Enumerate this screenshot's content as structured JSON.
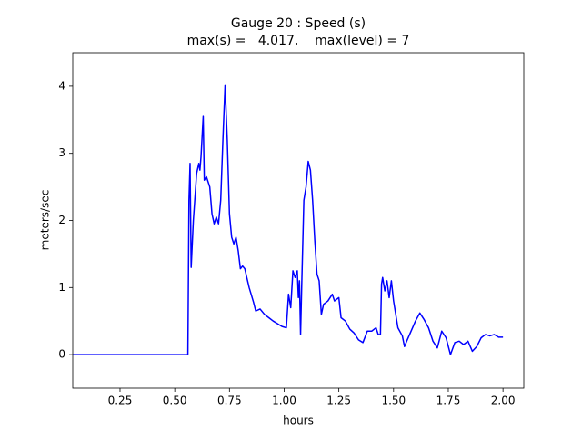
{
  "chart_data": {
    "type": "line",
    "title": "Gauge 20 : Speed (s)",
    "subtitle": "max(s) =   4.017,    max(level) = 7",
    "x_label": "hours",
    "y_label": "meters/sec",
    "x": [
      0.034,
      0.56,
      0.565,
      0.57,
      0.575,
      0.585,
      0.6,
      0.61,
      0.615,
      0.62,
      0.63,
      0.635,
      0.645,
      0.66,
      0.67,
      0.68,
      0.69,
      0.7,
      0.71,
      0.72,
      0.73,
      0.74,
      0.75,
      0.76,
      0.77,
      0.78,
      0.79,
      0.8,
      0.81,
      0.82,
      0.84,
      0.86,
      0.87,
      0.89,
      0.91,
      0.93,
      0.95,
      0.97,
      0.99,
      1.01,
      1.02,
      1.03,
      1.04,
      1.05,
      1.06,
      1.065,
      1.07,
      1.075,
      1.08,
      1.09,
      1.1,
      1.11,
      1.12,
      1.13,
      1.14,
      1.15,
      1.16,
      1.17,
      1.18,
      1.2,
      1.22,
      1.23,
      1.25,
      1.26,
      1.28,
      1.3,
      1.32,
      1.34,
      1.36,
      1.38,
      1.4,
      1.42,
      1.43,
      1.44,
      1.445,
      1.45,
      1.46,
      1.47,
      1.48,
      1.49,
      1.5,
      1.51,
      1.52,
      1.54,
      1.55,
      1.56,
      1.58,
      1.6,
      1.62,
      1.64,
      1.66,
      1.68,
      1.7,
      1.72,
      1.74,
      1.76,
      1.78,
      1.8,
      1.82,
      1.84,
      1.86,
      1.88,
      1.9,
      1.92,
      1.94,
      1.96,
      1.98,
      2.0
    ],
    "series": [
      {
        "name": "s",
        "color": "#0000ff",
        "values": [
          0,
          0,
          2.3,
          2.85,
          1.3,
          2.0,
          2.7,
          2.85,
          2.75,
          2.95,
          3.55,
          2.6,
          2.65,
          2.5,
          2.1,
          1.95,
          2.05,
          1.95,
          2.3,
          3.2,
          4.02,
          3.2,
          2.1,
          1.75,
          1.65,
          1.75,
          1.55,
          1.28,
          1.32,
          1.28,
          1.0,
          0.78,
          0.65,
          0.68,
          0.6,
          0.55,
          0.5,
          0.46,
          0.42,
          0.4,
          0.9,
          0.7,
          1.25,
          1.15,
          1.25,
          0.85,
          1.1,
          0.3,
          1.0,
          2.3,
          2.5,
          2.88,
          2.75,
          2.3,
          1.7,
          1.2,
          1.1,
          0.6,
          0.75,
          0.8,
          0.9,
          0.8,
          0.85,
          0.55,
          0.5,
          0.38,
          0.32,
          0.22,
          0.18,
          0.35,
          0.35,
          0.4,
          0.3,
          0.3,
          1.05,
          1.15,
          0.95,
          1.1,
          0.85,
          1.1,
          0.8,
          0.6,
          0.4,
          0.28,
          0.12,
          0.2,
          0.35,
          0.5,
          0.62,
          0.52,
          0.4,
          0.2,
          0.1,
          0.35,
          0.25,
          0.0,
          0.18,
          0.2,
          0.15,
          0.2,
          0.05,
          0.12,
          0.25,
          0.3,
          0.28,
          0.3,
          0.26,
          0.26
        ]
      }
    ],
    "xlim": [
      0.034,
      2.095
    ],
    "ylim": [
      -0.5,
      4.5
    ],
    "xticks": [
      0.25,
      {
        "value": 0.5,
        "label": "0.50"
      },
      0.75,
      {
        "value": 1,
        "label": "1.00"
      },
      1.25,
      {
        "value": 1.5,
        "label": "1.50"
      },
      1.75,
      {
        "value": 2,
        "label": "2.00"
      }
    ],
    "yticks": [
      0,
      1,
      2,
      3,
      4
    ]
  }
}
